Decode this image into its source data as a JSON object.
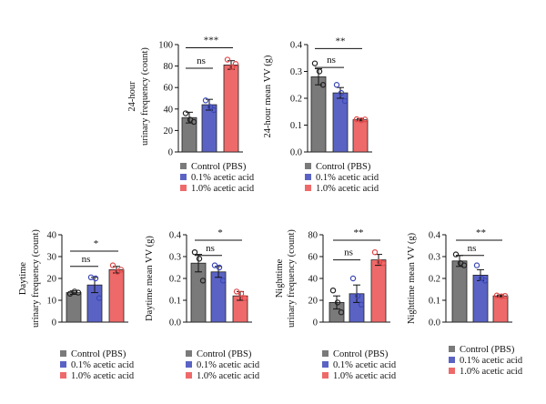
{
  "colors": {
    "control": "#7a7a7a",
    "acetic01": "#5a63c4",
    "acetic10": "#ee6a6a",
    "control_point": "#222222",
    "acetic01_point": "#3b47b8",
    "acetic10_point": "#e04848"
  },
  "chart_data": [
    {
      "type": "bar",
      "id": "p1",
      "ylabel": [
        "24-hour",
        "urinary frequency (count)"
      ],
      "ylim": [
        0,
        100
      ],
      "yticks": [
        "0",
        "20",
        "40",
        "60",
        "80",
        "100"
      ],
      "ytick_values": [
        0,
        20,
        40,
        60,
        80,
        100
      ],
      "categories": [
        "Control (PBS)",
        "0.1% acetic acid",
        "1.0% acetic acid"
      ],
      "values": [
        32,
        44,
        81
      ],
      "errors": [
        5,
        5,
        4
      ],
      "points": [
        [
          36,
          30,
          28
        ],
        [
          48,
          42,
          39
        ],
        [
          86,
          79,
          82
        ]
      ],
      "significance": [
        {
          "from": 0,
          "to": 2,
          "label": "***",
          "level": 97
        },
        {
          "from": 0,
          "to": 1,
          "label": "ns",
          "level": 78
        }
      ]
    },
    {
      "type": "bar",
      "id": "p2",
      "ylabel": [
        "24-hour mean VV (g)"
      ],
      "ylim": [
        0,
        0.4
      ],
      "yticks": [
        "0.0",
        "0.1",
        "0.2",
        "0.3",
        "0.4"
      ],
      "ytick_values": [
        0,
        0.1,
        0.2,
        0.3,
        0.4
      ],
      "categories": [
        "Control (PBS)",
        "0.1% acetic acid",
        "1.0% acetic acid"
      ],
      "values": [
        0.28,
        0.22,
        0.12
      ],
      "errors": [
        0.03,
        0.02,
        0.004
      ],
      "points": [
        [
          0.33,
          0.3,
          0.25
        ],
        [
          0.25,
          0.22,
          0.19
        ],
        [
          0.122,
          0.118,
          0.121
        ]
      ],
      "significance": [
        {
          "from": 0,
          "to": 2,
          "label": "**",
          "level": 0.385
        },
        {
          "from": 0,
          "to": 1,
          "label": "ns",
          "level": 0.315
        }
      ]
    },
    {
      "type": "bar",
      "id": "p3",
      "ylabel": [
        "Daytime",
        "urinary frequency (count)"
      ],
      "ylim": [
        0,
        40
      ],
      "yticks": [
        "0",
        "10",
        "20",
        "30",
        "40"
      ],
      "ytick_values": [
        0,
        10,
        20,
        30,
        40
      ],
      "categories": [
        "Control (PBS)",
        "0.1% acetic acid",
        "1.0% acetic acid"
      ],
      "values": [
        13.5,
        17,
        24
      ],
      "errors": [
        0.8,
        3.5,
        1.5
      ],
      "points": [
        [
          13,
          14,
          13.5
        ],
        [
          20.5,
          20,
          11
        ],
        [
          26,
          23,
          24
        ]
      ],
      "significance": [
        {
          "from": 0,
          "to": 2,
          "label": "*",
          "level": 32.5
        },
        {
          "from": 0,
          "to": 1,
          "label": "ns",
          "level": 25.5
        }
      ]
    },
    {
      "type": "bar",
      "id": "p4",
      "ylabel": [
        "Daytime mean VV (g)"
      ],
      "ylim": [
        0,
        0.4
      ],
      "yticks": [
        "0.0",
        "0.1",
        "0.2",
        "0.3",
        "0.4"
      ],
      "ytick_values": [
        0,
        0.1,
        0.2,
        0.3,
        0.4
      ],
      "categories": [
        "Control (PBS)",
        "0.1% acetic acid",
        "1.0% acetic acid"
      ],
      "values": [
        0.27,
        0.23,
        0.12
      ],
      "errors": [
        0.04,
        0.025,
        0.02
      ],
      "points": [
        [
          0.32,
          0.29,
          0.19
        ],
        [
          0.26,
          0.25,
          0.19
        ],
        [
          0.14,
          0.13,
          0.11
        ]
      ],
      "significance": [
        {
          "from": 0,
          "to": 2,
          "label": "*",
          "level": 0.375
        },
        {
          "from": 0,
          "to": 1,
          "label": "ns",
          "level": 0.305
        }
      ]
    },
    {
      "type": "bar",
      "id": "p5",
      "ylabel": [
        "Nighttime",
        "urinary frequency (count)"
      ],
      "ylim": [
        0,
        80
      ],
      "yticks": [
        "0",
        "20",
        "40",
        "60",
        "80"
      ],
      "ytick_values": [
        0,
        20,
        40,
        60,
        80
      ],
      "categories": [
        "Control (PBS)",
        "0.1% acetic acid",
        "1.0% acetic acid"
      ],
      "values": [
        18,
        26,
        57
      ],
      "errors": [
        6,
        8,
        5
      ],
      "points": [
        [
          29,
          18,
          9
        ],
        [
          40,
          24,
          16
        ],
        [
          64,
          55,
          54
        ]
      ],
      "significance": [
        {
          "from": 0,
          "to": 2,
          "label": "**",
          "level": 75
        },
        {
          "from": 0,
          "to": 1,
          "label": "ns",
          "level": 57
        }
      ]
    },
    {
      "type": "bar",
      "id": "p6",
      "ylabel": [
        "Nighttime mean VV (g)"
      ],
      "ylim": [
        0,
        0.4
      ],
      "yticks": [
        "0.0",
        "0.1",
        "0.2",
        "0.3",
        "0.4"
      ],
      "ytick_values": [
        0,
        0.1,
        0.2,
        0.3,
        0.4
      ],
      "categories": [
        "Control (PBS)",
        "0.1% acetic acid",
        "1.0% acetic acid"
      ],
      "values": [
        0.28,
        0.215,
        0.12
      ],
      "errors": [
        0.025,
        0.025,
        0.004
      ],
      "points": [
        [
          0.31,
          0.27,
          0.26
        ],
        [
          0.26,
          0.2,
          0.19
        ],
        [
          0.122,
          0.118,
          0.12
        ]
      ],
      "significance": [
        {
          "from": 0,
          "to": 2,
          "label": "**",
          "level": 0.375
        },
        {
          "from": 0,
          "to": 1,
          "label": "ns",
          "level": 0.305
        }
      ]
    }
  ],
  "legend": {
    "items": [
      "Control (PBS)",
      "0.1% acetic acid",
      "1.0% acetic acid"
    ]
  }
}
